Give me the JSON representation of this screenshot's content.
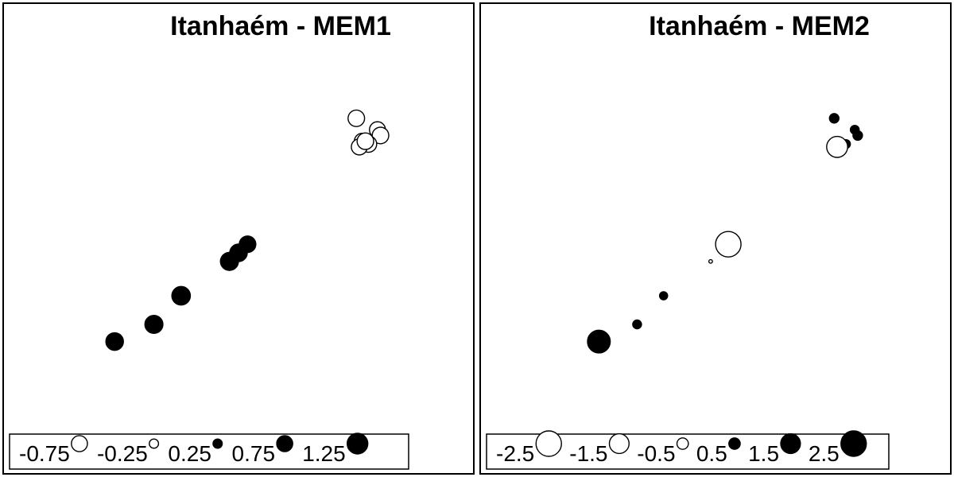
{
  "colors": {
    "positive_fill": "#000000",
    "negative_fill": "#ffffff",
    "stroke": "#000000",
    "background": "#ffffff"
  },
  "chart_data": [
    {
      "type": "scatter",
      "title": "Itanhaém - MEM1",
      "xlabel": "",
      "ylabel": "",
      "grid": false,
      "legend_position": "bottom",
      "legend": {
        "labels": [
          "-0.75",
          "-0.25",
          "0.25",
          "0.75",
          "1.25"
        ],
        "values": [
          -0.75,
          -0.25,
          0.25,
          0.75,
          1.25
        ]
      },
      "points": [
        {
          "x": 0.09,
          "y": 0.14,
          "value": 0.9
        },
        {
          "x": 0.22,
          "y": 0.2,
          "value": 0.95
        },
        {
          "x": 0.31,
          "y": 0.3,
          "value": 1.0
        },
        {
          "x": 0.47,
          "y": 0.42,
          "value": 0.95
        },
        {
          "x": 0.5,
          "y": 0.45,
          "value": 0.9
        },
        {
          "x": 0.53,
          "y": 0.48,
          "value": 0.8
        },
        {
          "x": 0.89,
          "y": 0.92,
          "value": -0.8
        },
        {
          "x": 0.96,
          "y": 0.88,
          "value": -0.75
        },
        {
          "x": 0.97,
          "y": 0.86,
          "value": -0.8
        },
        {
          "x": 0.91,
          "y": 0.84,
          "value": -0.75
        },
        {
          "x": 0.93,
          "y": 0.83,
          "value": -0.8
        },
        {
          "x": 0.9,
          "y": 0.82,
          "value": -0.75
        },
        {
          "x": 0.92,
          "y": 0.84,
          "value": -0.8
        }
      ]
    },
    {
      "type": "scatter",
      "title": "Itanhaém - MEM2",
      "xlabel": "",
      "ylabel": "",
      "grid": false,
      "legend_position": "bottom",
      "legend": {
        "labels": [
          "-2.5",
          "-1.5",
          "-0.5",
          "0.5",
          "1.5",
          "2.5"
        ],
        "values": [
          -2.5,
          -1.5,
          -0.5,
          0.5,
          1.5,
          2.5
        ]
      },
      "points": [
        {
          "x": 0.09,
          "y": 0.14,
          "value": 2.0
        },
        {
          "x": 0.22,
          "y": 0.2,
          "value": 0.3
        },
        {
          "x": 0.31,
          "y": 0.3,
          "value": 0.25
        },
        {
          "x": 0.47,
          "y": 0.42,
          "value": -0.05
        },
        {
          "x": 0.53,
          "y": 0.48,
          "value": -2.5
        },
        {
          "x": 0.89,
          "y": 0.92,
          "value": 0.35
        },
        {
          "x": 0.96,
          "y": 0.88,
          "value": 0.3
        },
        {
          "x": 0.97,
          "y": 0.86,
          "value": 0.35
        },
        {
          "x": 0.91,
          "y": 0.84,
          "value": 0.2
        },
        {
          "x": 0.93,
          "y": 0.83,
          "value": 0.3
        },
        {
          "x": 0.9,
          "y": 0.82,
          "value": -1.7
        }
      ]
    }
  ]
}
